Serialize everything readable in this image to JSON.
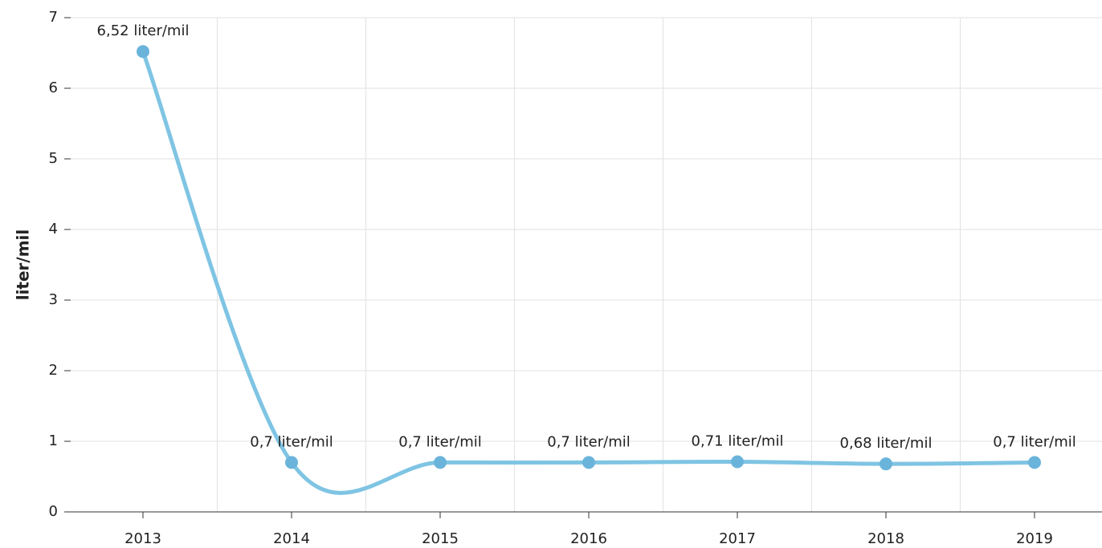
{
  "chart_data": {
    "type": "line",
    "y_label": "liter/mil",
    "categories": [
      "2013",
      "2014",
      "2015",
      "2016",
      "2017",
      "2018",
      "2019"
    ],
    "series": [
      {
        "name": "liter/mil",
        "color": "#7fc4e3",
        "values": [
          6.52,
          0.7,
          0.7,
          0.7,
          0.71,
          0.68,
          0.7
        ],
        "value_labels": [
          "6,52 liter/mil",
          "0,7 liter/mil",
          "0,7 liter/mil",
          "0,7 liter/mil",
          "0,71 liter/mil",
          "0,68 liter/mil",
          "0,7 liter/mil"
        ]
      }
    ],
    "ylim": [
      0,
      7
    ],
    "yticks": [
      0,
      1,
      2,
      3,
      4,
      5,
      6,
      7
    ],
    "grid": true,
    "smooth": true
  }
}
